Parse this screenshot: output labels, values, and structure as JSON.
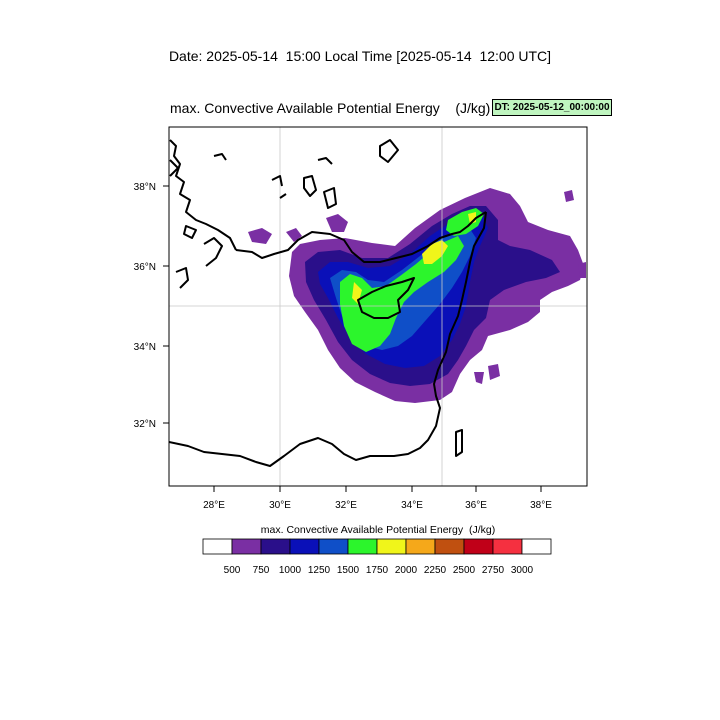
{
  "header": {
    "date_line": "Date: 2025-05-14  15:00 Local Time [2025-05-14  12:00 UTC]",
    "plot_title": "max. Convective Available Potential Energy    (J/kg)",
    "dt_badge": "DT: 2025-05-12_00:00:00"
  },
  "map": {
    "lon_ticks": [
      "28°E",
      "30°E",
      "32°E",
      "34°E",
      "36°E",
      "38°E"
    ],
    "lat_ticks": [
      "38°N",
      "36°N",
      "34°N",
      "32°N"
    ],
    "gridlines": true,
    "field": "max. Convective Available Potential Energy",
    "units": "J/kg"
  },
  "colorbar": {
    "title": "max. Convective Available Potential Energy  (J/kg)",
    "labels": [
      "500",
      "750",
      "1000",
      "1250",
      "1500",
      "1750",
      "2000",
      "2250",
      "2500",
      "2750",
      "3000"
    ],
    "colors": [
      "#ffffff",
      "#7a2fa3",
      "#2a0f8a",
      "#0a10b8",
      "#0f4fc8",
      "#2cf52c",
      "#f0f51a",
      "#f5a81a",
      "#c05010",
      "#c00018",
      "#f53040",
      "#ffffff"
    ]
  }
}
